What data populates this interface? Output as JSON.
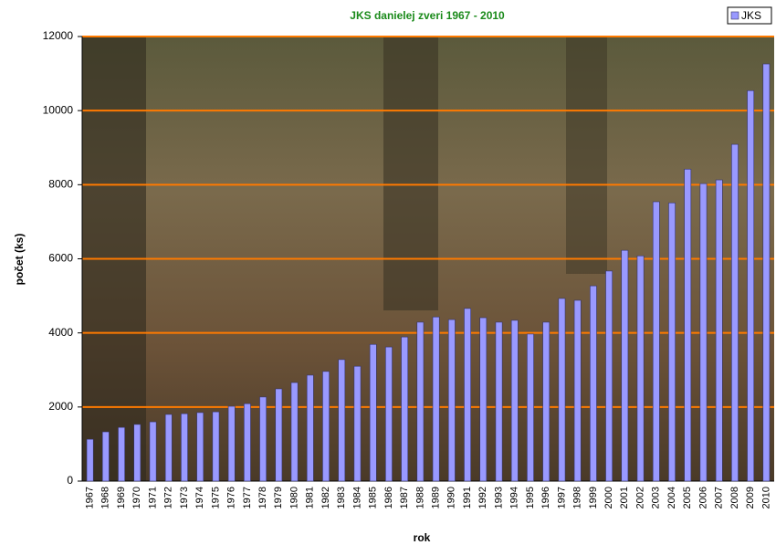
{
  "chart_data": {
    "type": "bar",
    "title": "JKS danielej zveri 1967 - 2010",
    "x_label": "rok",
    "y_label": "počet (ks)",
    "categories": [
      "1967",
      "1968",
      "1969",
      "1970",
      "1971",
      "1972",
      "1973",
      "1974",
      "1975",
      "1976",
      "1977",
      "1978",
      "1979",
      "1980",
      "1981",
      "1982",
      "1983",
      "1984",
      "1985",
      "1986",
      "1987",
      "1988",
      "1989",
      "1990",
      "1991",
      "1992",
      "1993",
      "1994",
      "1995",
      "1996",
      "1997",
      "1998",
      "1999",
      "2000",
      "2001",
      "2002",
      "2003",
      "2004",
      "2005",
      "2006",
      "2007",
      "2008",
      "2009",
      "2010"
    ],
    "series": [
      {
        "name": "JKS",
        "color": "#9999ff",
        "values": [
          1130,
          1330,
          1450,
          1530,
          1600,
          1800,
          1820,
          1850,
          1870,
          2020,
          2090,
          2270,
          2490,
          2660,
          2860,
          2960,
          3280,
          3100,
          3690,
          3620,
          3890,
          4290,
          4430,
          4360,
          4660,
          4410,
          4290,
          4340,
          3970,
          4290,
          4930,
          4880,
          5270,
          5670,
          6230,
          6080,
          7540,
          7510,
          8420,
          8030,
          8130,
          9090,
          10540,
          11260
        ]
      }
    ],
    "ylim": [
      0,
      12000
    ],
    "yticks": [
      0,
      2000,
      4000,
      6000,
      8000,
      10000,
      12000
    ],
    "grid": true,
    "grid_color": "#ff7a00",
    "legend": "top-right"
  }
}
